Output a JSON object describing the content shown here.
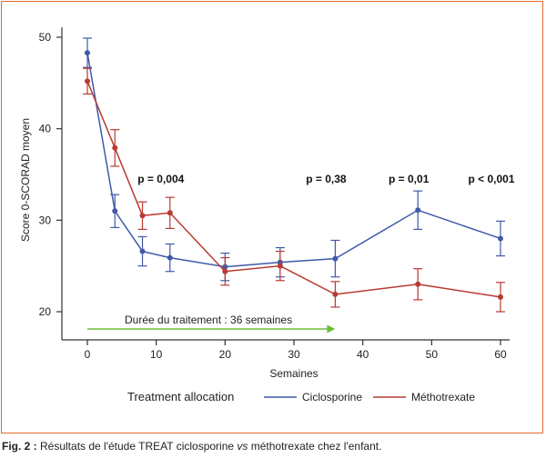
{
  "chart_data": {
    "type": "line",
    "title": "",
    "xlabel": "Semaines",
    "ylabel": "Score 0-SCORAD moyen",
    "xlim": [
      0,
      60
    ],
    "ylim": [
      20,
      50
    ],
    "xticks": [
      0,
      10,
      20,
      30,
      40,
      50,
      60
    ],
    "yticks": [
      20,
      30,
      40,
      50
    ],
    "grid": false,
    "legend": {
      "title": "Treatment allocation",
      "placement": "bottom"
    },
    "series": [
      {
        "name": "Ciclosporine",
        "color": "#3f5aa8",
        "x": [
          0,
          4,
          8,
          12,
          20,
          28,
          36,
          48,
          60
        ],
        "y": [
          48.3,
          31.0,
          26.6,
          25.9,
          24.9,
          25.4,
          25.8,
          31.1,
          28.0
        ],
        "err": [
          1.6,
          1.8,
          1.6,
          1.5,
          1.5,
          1.6,
          2.0,
          2.1,
          1.9
        ]
      },
      {
        "name": "Méthotrexate",
        "color": "#b83a32",
        "x": [
          0,
          4,
          8,
          12,
          20,
          28,
          36,
          48,
          60
        ],
        "y": [
          45.2,
          37.9,
          30.5,
          30.8,
          24.4,
          25.0,
          21.9,
          23.0,
          21.6
        ],
        "err": [
          1.4,
          2.0,
          1.5,
          1.7,
          1.5,
          1.6,
          1.4,
          1.7,
          1.6
        ]
      }
    ],
    "annotations": [
      {
        "text": "p = 0,004",
        "x": 12,
        "y": 34.1
      },
      {
        "text": "p = 0,38",
        "x": 36,
        "y": 34.1
      },
      {
        "text": "p = 0,01",
        "x": 48,
        "y": 34.1
      },
      {
        "text": "p < 0,001",
        "x": 60,
        "y": 34.1
      }
    ],
    "treatment_arrow": {
      "label": "Durée du traitement : 36 semaines",
      "x_start": 0,
      "x_end": 36,
      "color": "#6bbf3a"
    }
  },
  "caption": {
    "fig_label": "Fig. 2 :",
    "text_before": " Résultats de l'étude TREAT ciclosporine ",
    "text_italic": "vs",
    "text_after": " méthotrexate chez l'enfant."
  },
  "frame_color": "#e06a2a"
}
